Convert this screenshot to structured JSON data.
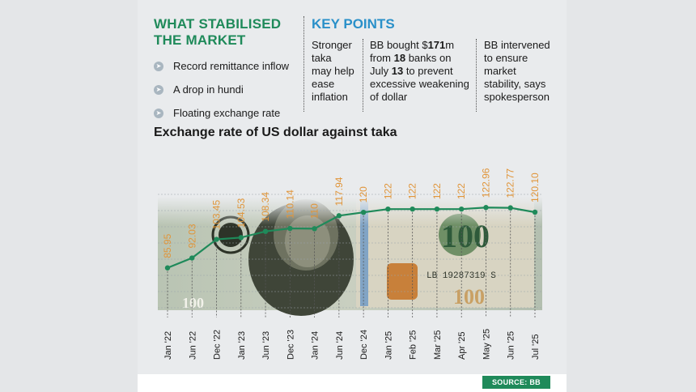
{
  "stabilised": {
    "heading_line1": "WHAT STABILISED",
    "heading_line2": "THE MARKET",
    "items": [
      "Record remittance inflow",
      "A drop in hundi",
      "Floating exchange rate"
    ]
  },
  "key_points": {
    "heading": "KEY POINTS",
    "point1": [
      "Stronger",
      "taka",
      "may help",
      "ease",
      "inflation"
    ],
    "point2": {
      "l1a": "BB bought $",
      "l1b": "171",
      "l1c": "m",
      "l2a": "from ",
      "l2b": "18",
      "l2c": " banks on",
      "l3a": "July ",
      "l3b": "13",
      "l3c": " to prevent",
      "l4": "excessive weakening",
      "l5": "of dollar"
    },
    "point3": [
      "BB intervened",
      "to ensure",
      "market",
      "stability, says",
      "spokesperson"
    ]
  },
  "chart_data": {
    "type": "line",
    "title": "Exchange rate of US dollar against taka",
    "categories": [
      "Jan '22",
      "Jun '22",
      "Dec '22",
      "Jan '23",
      "Jun '23",
      "Dec '23",
      "Jan '24",
      "Jun '24",
      "Dec '24",
      "Jan '25",
      "Feb '25",
      "Mar '25",
      "Apr '25",
      "May '25",
      "Jun '25",
      "Jul '25"
    ],
    "values": [
      85.95,
      92.03,
      103.45,
      104.53,
      108.34,
      110.14,
      110,
      117.94,
      120,
      122,
      122,
      122,
      122,
      122.96,
      122.77,
      120.1
    ],
    "value_labels": [
      "85.95",
      "92.03",
      "103.45",
      "104.53",
      "108.34",
      "110.14",
      "110",
      "117.94",
      "120",
      "122",
      "122",
      "122",
      "122",
      "122.96",
      "122.77",
      "120.10"
    ],
    "ylim": [
      60,
      135
    ],
    "grid": true,
    "line_color": "#1f8a5a",
    "label_color": "#e0953a"
  },
  "source": "SOURCE: BB"
}
